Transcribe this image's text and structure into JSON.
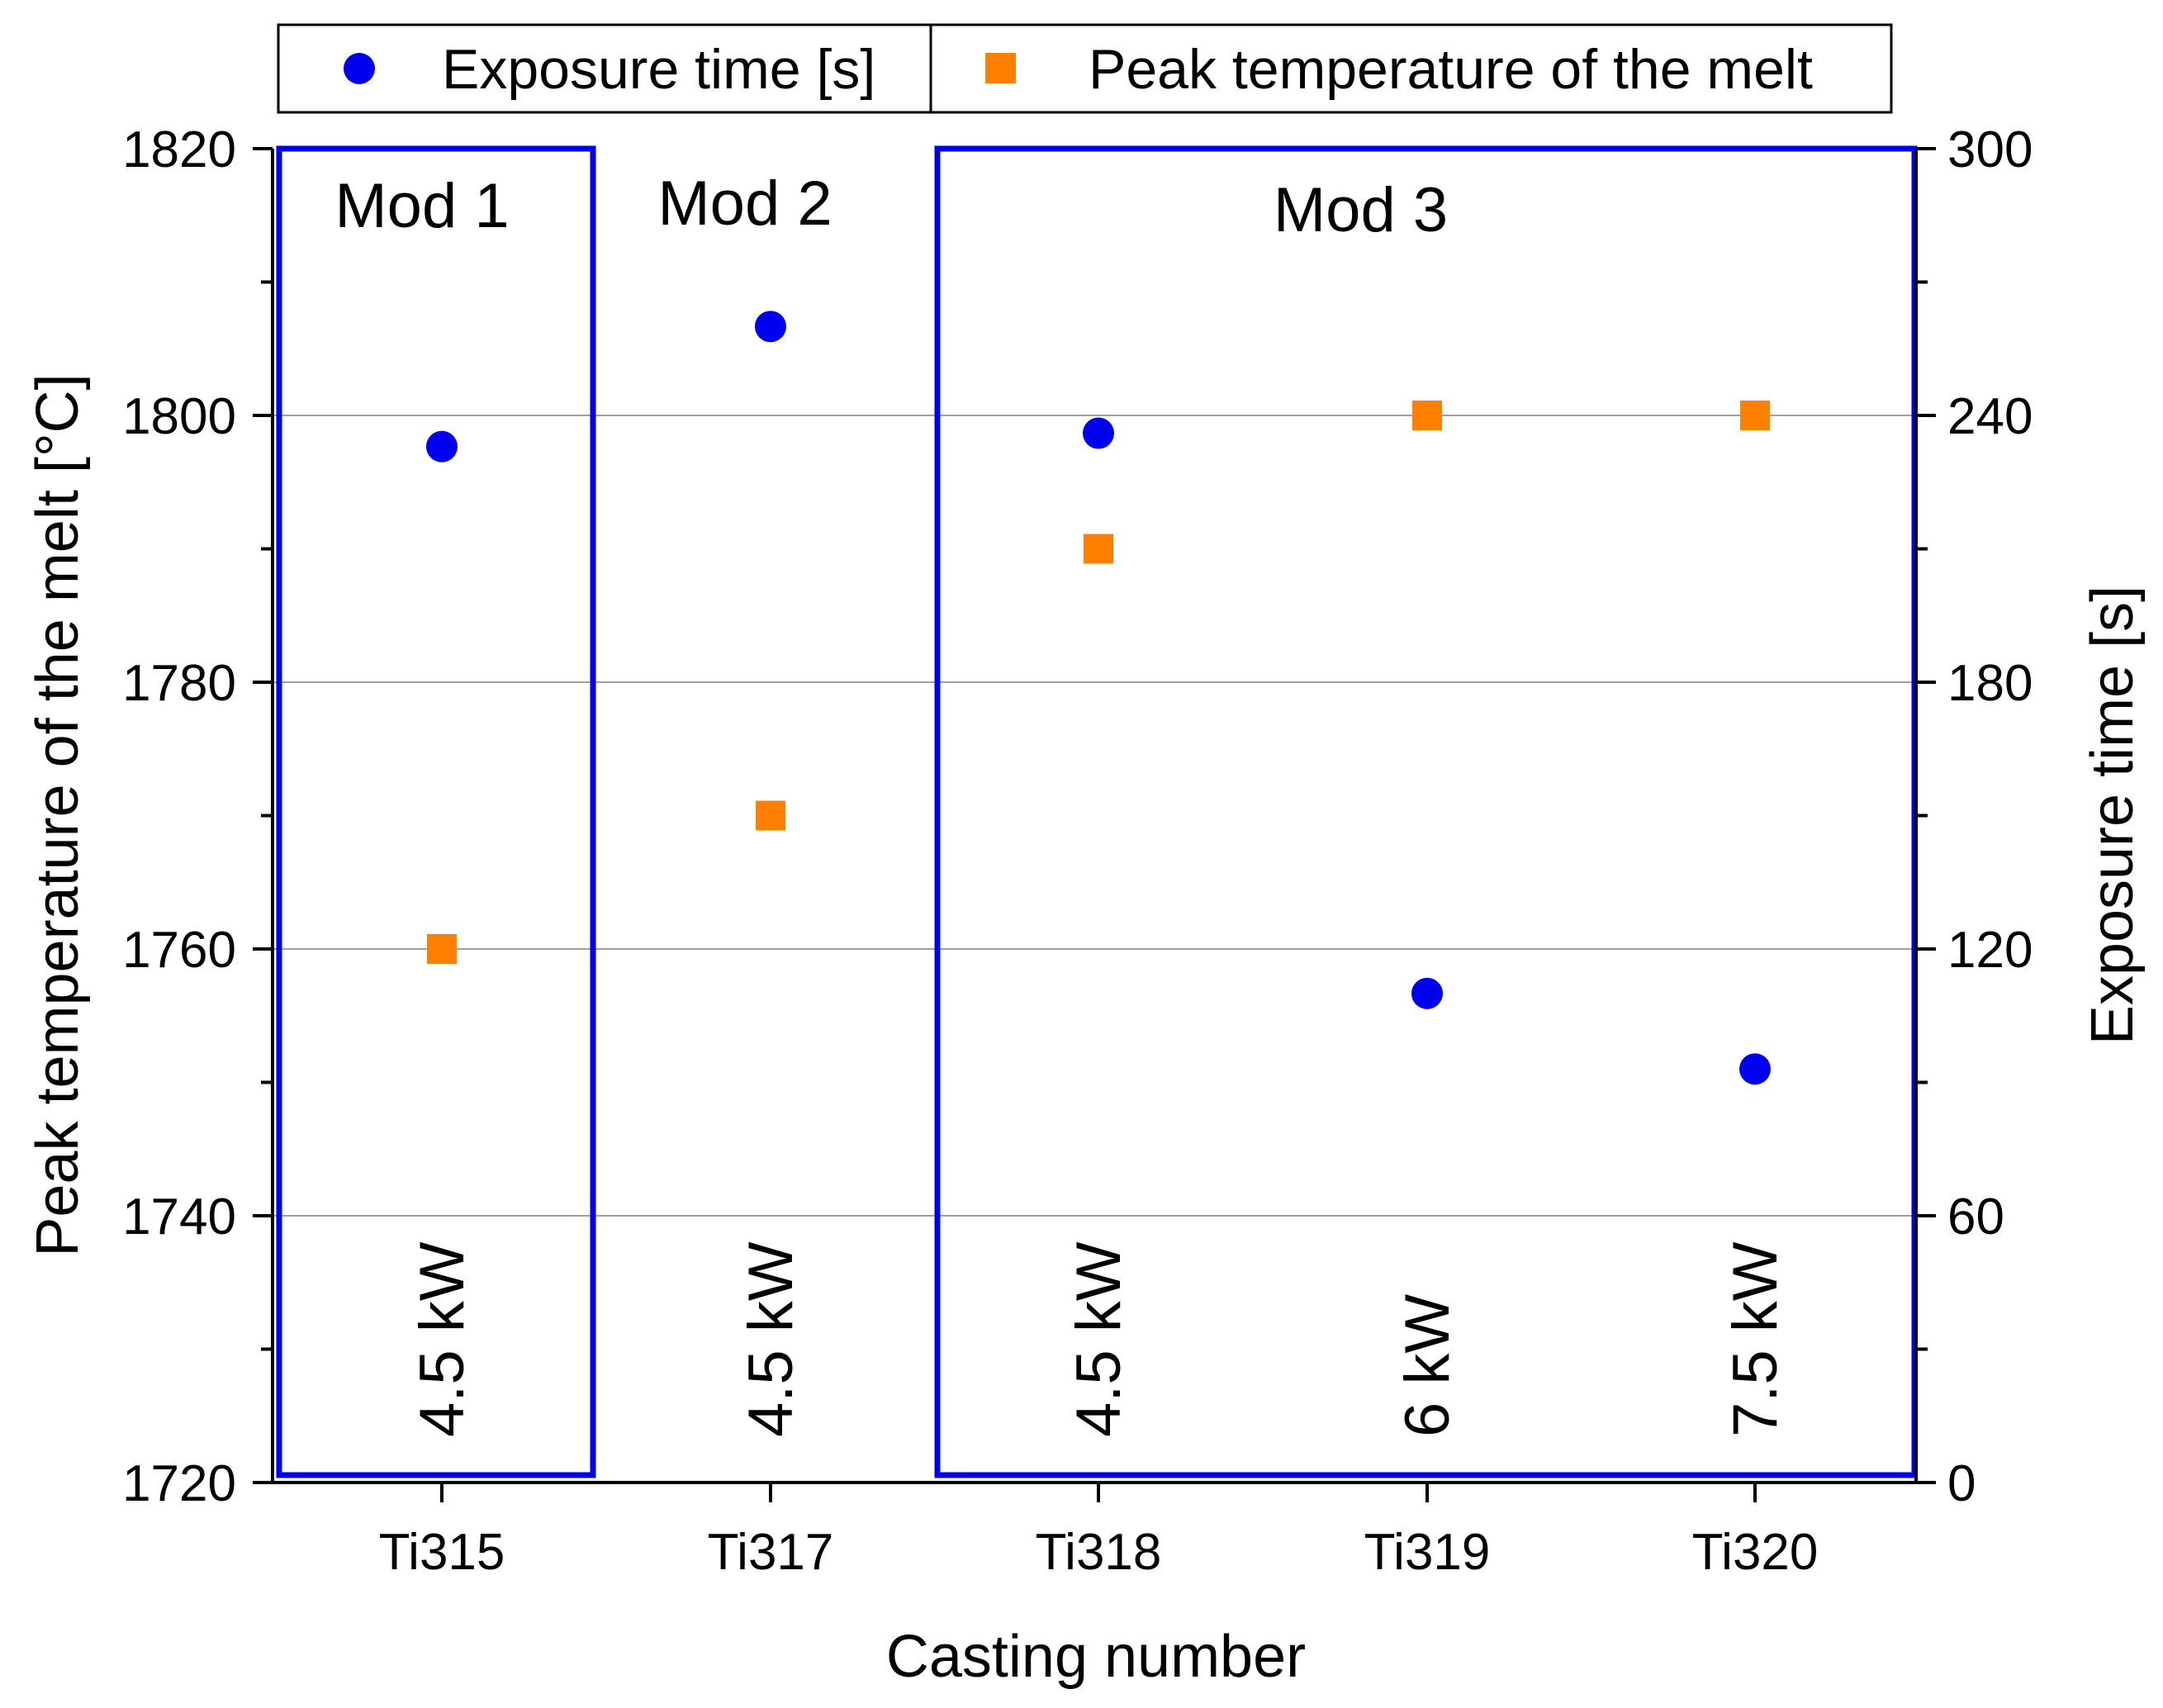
{
  "chart_data": {
    "type": "scatter",
    "title": "",
    "xlabel": "Casting number",
    "ylabel": "Peak temperature of the melt [°C]",
    "y2label": "Exposure time [s]",
    "categories": [
      "Ti315",
      "Ti317",
      "Ti318",
      "Ti319",
      "Ti320"
    ],
    "ylim": [
      1720,
      1820
    ],
    "y2lim": [
      0,
      300
    ],
    "yticks": [
      1720,
      1740,
      1760,
      1780,
      1800,
      1820
    ],
    "y2ticks": [
      0,
      60,
      120,
      180,
      240,
      300
    ],
    "grid": true,
    "legend_position": "top",
    "series": [
      {
        "name": "Exposure time [s]",
        "axis": "right",
        "marker": "circle",
        "color": "#0000ee",
        "values": [
          233,
          260,
          236,
          110,
          93
        ]
      },
      {
        "name": "Peak temperature of the melt",
        "axis": "left",
        "marker": "square",
        "color": "#ff8000",
        "values": [
          1760,
          1770,
          1790,
          1800,
          1800
        ]
      }
    ],
    "power_labels": [
      "4.5 kW",
      "4.5 kW",
      "4.5 kW",
      "6 kW",
      "7.5 kW"
    ],
    "groups": [
      {
        "label": "Mod 1",
        "boxed": true,
        "from": "Ti315",
        "to": "Ti315"
      },
      {
        "label": "Mod 2",
        "boxed": false,
        "from": "Ti317",
        "to": "Ti317"
      },
      {
        "label": "Mod 3",
        "boxed": true,
        "from": "Ti318",
        "to": "Ti320"
      }
    ],
    "box_color": "#0000ee",
    "grid_color": "#a0a0a0"
  }
}
